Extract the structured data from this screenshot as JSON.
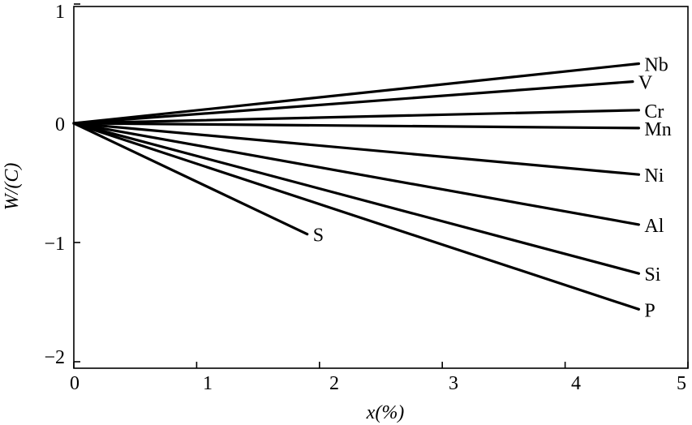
{
  "chart_data": {
    "type": "line",
    "title": "",
    "xlabel": "x(%)",
    "ylabel": "W/(C)",
    "xlim": [
      0,
      5
    ],
    "ylim": [
      -2,
      1
    ],
    "xticks": [
      "0",
      "1",
      "2",
      "3",
      "4",
      "5"
    ],
    "yticks": [
      "1",
      "0",
      "−1",
      "−2"
    ],
    "grid": false,
    "legend": "inline labels at line ends",
    "series": [
      {
        "name": "Nb",
        "x": [
          0,
          4.6
        ],
        "y": [
          0,
          0.5
        ]
      },
      {
        "name": "V",
        "x": [
          0,
          4.55
        ],
        "y": [
          0,
          0.35
        ]
      },
      {
        "name": "Cr",
        "x": [
          0,
          4.6
        ],
        "y": [
          0,
          0.11
        ]
      },
      {
        "name": "Mn",
        "x": [
          0,
          4.6
        ],
        "y": [
          0,
          -0.04
        ]
      },
      {
        "name": "Ni",
        "x": [
          0,
          4.6
        ],
        "y": [
          0,
          -0.43
        ]
      },
      {
        "name": "Al",
        "x": [
          0,
          4.6
        ],
        "y": [
          0,
          -0.85
        ]
      },
      {
        "name": "Si",
        "x": [
          0,
          4.6
        ],
        "y": [
          0,
          -1.26
        ]
      },
      {
        "name": "P",
        "x": [
          0,
          4.6
        ],
        "y": [
          0,
          -1.56
        ]
      },
      {
        "name": "S",
        "x": [
          0,
          1.9
        ],
        "y": [
          0,
          -0.93
        ]
      }
    ]
  }
}
